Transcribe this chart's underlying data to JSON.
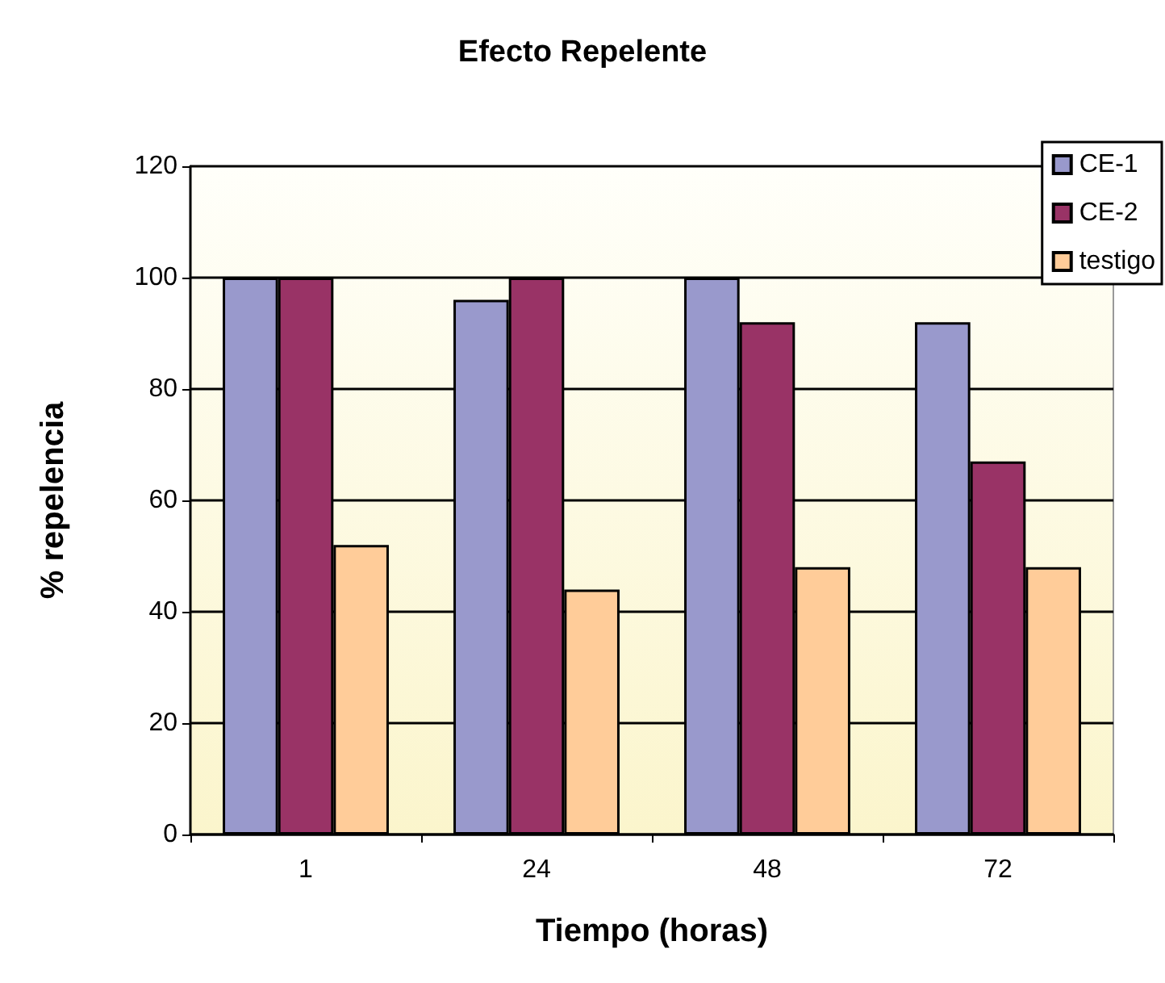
{
  "chart_data": {
    "type": "bar",
    "title": "Efecto Repelente",
    "xlabel": "Tiempo (horas)",
    "ylabel": "% repelencia",
    "categories": [
      "1",
      "24",
      "48",
      "72"
    ],
    "series": [
      {
        "name": "CE-1",
        "color": "#9999cc",
        "values": [
          100,
          96,
          100,
          92
        ]
      },
      {
        "name": "CE-2",
        "color": "#993366",
        "values": [
          100,
          100,
          92,
          67
        ]
      },
      {
        "name": "testigo",
        "color": "#ffcc99",
        "values": [
          52,
          44,
          48,
          48
        ]
      }
    ],
    "ylim": [
      0,
      120
    ],
    "yticks": [
      0,
      20,
      40,
      60,
      80,
      100,
      120
    ],
    "grid": "y",
    "legend": "top right"
  }
}
